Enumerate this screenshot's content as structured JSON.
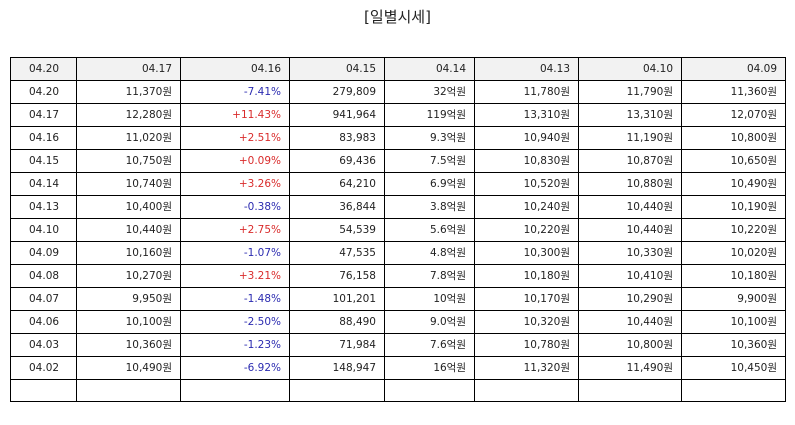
{
  "title": "[일별시세]",
  "colors": {
    "up": "#d92b2b",
    "down": "#2b2bb0",
    "header_bg": "#f2f2f2",
    "border": "#000000"
  },
  "table": {
    "headers": [
      "04.20",
      "04.17",
      "04.16",
      "04.15",
      "04.14",
      "04.13",
      "04.10",
      "04.09"
    ],
    "rows": [
      {
        "date": "04.20",
        "close": "11,370원",
        "change": "-7.41%",
        "direction": "down",
        "volume": "279,809",
        "amount": "32억원",
        "open": "11,780원",
        "high": "11,790원",
        "low": "11,360원"
      },
      {
        "date": "04.17",
        "close": "12,280원",
        "change": "+11.43%",
        "direction": "up",
        "volume": "941,964",
        "amount": "119억원",
        "open": "13,310원",
        "high": "13,310원",
        "low": "12,070원"
      },
      {
        "date": "04.16",
        "close": "11,020원",
        "change": "+2.51%",
        "direction": "up",
        "volume": "83,983",
        "amount": "9.3억원",
        "open": "10,940원",
        "high": "11,190원",
        "low": "10,800원"
      },
      {
        "date": "04.15",
        "close": "10,750원",
        "change": "+0.09%",
        "direction": "up",
        "volume": "69,436",
        "amount": "7.5억원",
        "open": "10,830원",
        "high": "10,870원",
        "low": "10,650원"
      },
      {
        "date": "04.14",
        "close": "10,740원",
        "change": "+3.26%",
        "direction": "up",
        "volume": "64,210",
        "amount": "6.9억원",
        "open": "10,520원",
        "high": "10,880원",
        "low": "10,490원"
      },
      {
        "date": "04.13",
        "close": "10,400원",
        "change": "-0.38%",
        "direction": "down",
        "volume": "36,844",
        "amount": "3.8억원",
        "open": "10,240원",
        "high": "10,440원",
        "low": "10,190원"
      },
      {
        "date": "04.10",
        "close": "10,440원",
        "change": "+2.75%",
        "direction": "up",
        "volume": "54,539",
        "amount": "5.6억원",
        "open": "10,220원",
        "high": "10,440원",
        "low": "10,220원"
      },
      {
        "date": "04.09",
        "close": "10,160원",
        "change": "-1.07%",
        "direction": "down",
        "volume": "47,535",
        "amount": "4.8억원",
        "open": "10,300원",
        "high": "10,330원",
        "low": "10,020원"
      },
      {
        "date": "04.08",
        "close": "10,270원",
        "change": "+3.21%",
        "direction": "up",
        "volume": "76,158",
        "amount": "7.8억원",
        "open": "10,180원",
        "high": "10,410원",
        "low": "10,180원"
      },
      {
        "date": "04.07",
        "close": "9,950원",
        "change": "-1.48%",
        "direction": "down",
        "volume": "101,201",
        "amount": "10억원",
        "open": "10,170원",
        "high": "10,290원",
        "low": "9,900원"
      },
      {
        "date": "04.06",
        "close": "10,100원",
        "change": "-2.50%",
        "direction": "down",
        "volume": "88,490",
        "amount": "9.0억원",
        "open": "10,320원",
        "high": "10,440원",
        "low": "10,100원"
      },
      {
        "date": "04.03",
        "close": "10,360원",
        "change": "-1.23%",
        "direction": "down",
        "volume": "71,984",
        "amount": "7.6억원",
        "open": "10,780원",
        "high": "10,800원",
        "low": "10,360원"
      },
      {
        "date": "04.02",
        "close": "10,490원",
        "change": "-6.92%",
        "direction": "down",
        "volume": "148,947",
        "amount": "16억원",
        "open": "11,320원",
        "high": "11,490원",
        "low": "10,450원"
      },
      {
        "date": "",
        "close": "",
        "change": "",
        "direction": "",
        "volume": "",
        "amount": "",
        "open": "",
        "high": "",
        "low": ""
      }
    ]
  }
}
